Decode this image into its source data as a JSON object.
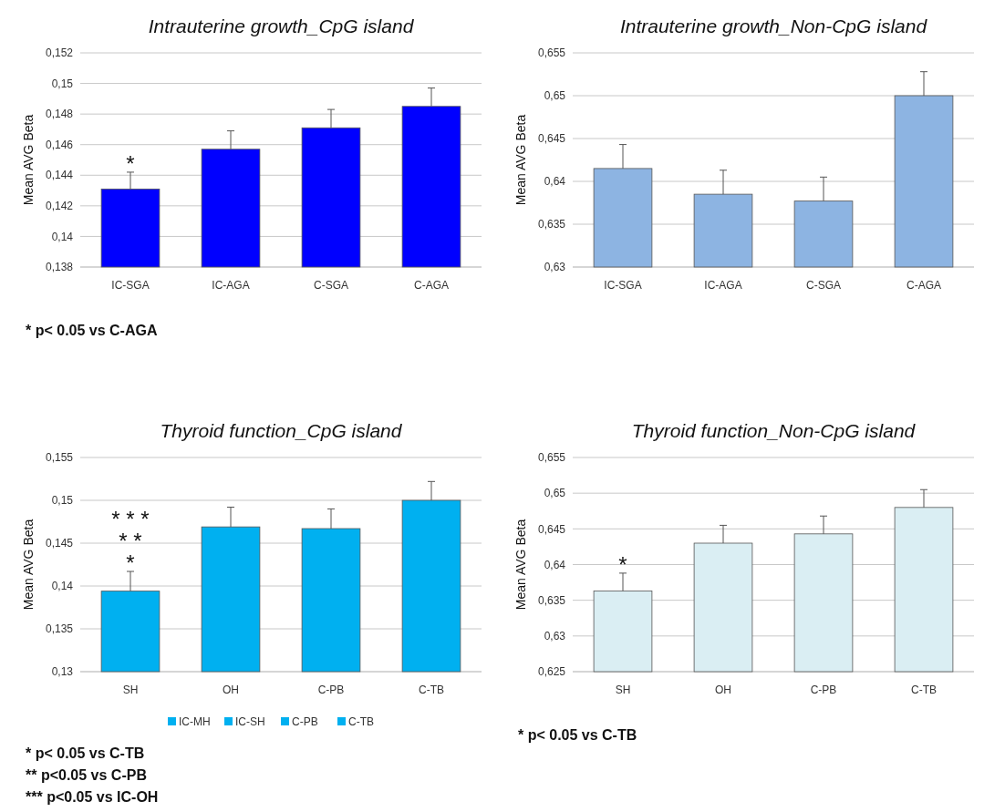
{
  "chart_data": [
    {
      "type": "bar",
      "title": "Intrauterine growth_CpG island",
      "ylabel": "Mean AVG Beta",
      "categories": [
        "IC-SGA",
        "IC-AGA",
        "C-SGA",
        "C-AGA"
      ],
      "series": [
        {
          "color": "#0000ff",
          "values": [
            0.1431,
            0.1457,
            0.1471,
            0.1485
          ],
          "errors": [
            [
              0.1431,
              0.1442
            ],
            [
              0.1457,
              0.1469
            ],
            [
              0.1471,
              0.1483
            ],
            [
              0.1485,
              0.1497
            ]
          ]
        }
      ],
      "ylim": [
        0.138,
        0.152
      ],
      "yticks": [
        {
          "value": 0.138,
          "label": "0,138"
        },
        {
          "value": 0.14,
          "label": "0,14"
        },
        {
          "value": 0.142,
          "label": "0,142"
        },
        {
          "value": 0.144,
          "label": "0,144"
        },
        {
          "value": 0.146,
          "label": "0,146"
        },
        {
          "value": 0.148,
          "label": "0,148"
        },
        {
          "value": 0.15,
          "label": "0,15"
        },
        {
          "value": 0.152,
          "label": "0,152"
        }
      ],
      "grid": "y",
      "legend": false,
      "annotations": [
        "*",
        "* p< 0.05 vs C-AGA"
      ]
    },
    {
      "type": "bar",
      "title": "Intrauterine growth_Non-CpG island",
      "ylabel": "Mean AVG Beta",
      "categories": [
        "IC-SGA",
        "IC-AGA",
        "C-SGA",
        "C-AGA"
      ],
      "series": [
        {
          "color": "#8db4e2",
          "values": [
            0.6415,
            0.6385,
            0.6377,
            0.65
          ],
          "errors": [
            [
              0.6415,
              0.6443
            ],
            [
              0.6385,
              0.6413
            ],
            [
              0.6377,
              0.6405
            ],
            [
              0.65,
              0.6528
            ]
          ]
        }
      ],
      "ylim": [
        0.63,
        0.655
      ],
      "yticks": [
        {
          "value": 0.63,
          "label": "0,63"
        },
        {
          "value": 0.635,
          "label": "0,635"
        },
        {
          "value": 0.64,
          "label": "0,64"
        },
        {
          "value": 0.645,
          "label": "0,645"
        },
        {
          "value": 0.65,
          "label": "0,65"
        },
        {
          "value": 0.655,
          "label": "0,655"
        }
      ],
      "grid": "y",
      "legend": false
    },
    {
      "type": "bar",
      "title": "Thyroid function_CpG island",
      "ylabel": "Mean AVG Beta",
      "categories": [
        "SH",
        "OH",
        "C-PB",
        "C-TB"
      ],
      "series": [
        {
          "name": "IC-MH",
          "color": "#00b0f0",
          "values": [
            0.1394,
            null,
            null,
            null
          ],
          "errors": [
            [
              0.1394,
              0.1417
            ],
            null,
            null,
            null
          ]
        },
        {
          "name": "IC-SH",
          "color": "#00b0f0",
          "values": [
            null,
            0.1469,
            null,
            null
          ],
          "errors": [
            null,
            [
              0.1469,
              0.1492
            ],
            null,
            null
          ]
        },
        {
          "name": "C-PB",
          "color": "#00b0f0",
          "values": [
            null,
            null,
            0.1467,
            null
          ],
          "errors": [
            null,
            null,
            [
              0.1467,
              0.149
            ],
            null
          ]
        },
        {
          "name": "C-TB",
          "color": "#00b0f0",
          "values": [
            null,
            null,
            null,
            0.15
          ],
          "errors": [
            null,
            null,
            null,
            [
              0.15,
              0.1522
            ]
          ]
        }
      ],
      "ylim": [
        0.13,
        0.155
      ],
      "yticks": [
        {
          "value": 0.13,
          "label": "0,13"
        },
        {
          "value": 0.135,
          "label": "0,135"
        },
        {
          "value": 0.14,
          "label": "0,14"
        },
        {
          "value": 0.145,
          "label": "0,145"
        },
        {
          "value": 0.15,
          "label": "0,15"
        },
        {
          "value": 0.155,
          "label": "0,155"
        }
      ],
      "grid": "y",
      "legend": "bottom",
      "annotations": [
        "* * *",
        "* *",
        "*",
        "* p< 0.05 vs C-TB",
        "** p<0.05 vs C-PB",
        "*** p<0.05 vs IC-OH"
      ]
    },
    {
      "type": "bar",
      "title": "Thyroid function_Non-CpG island",
      "ylabel": "Mean AVG Beta",
      "categories": [
        "SH",
        "OH",
        "C-PB",
        "C-TB"
      ],
      "series": [
        {
          "color": "#daeef3",
          "values": [
            0.6363,
            0.643,
            0.6443,
            0.648
          ],
          "errors": [
            [
              0.6363,
              0.6388
            ],
            [
              0.643,
              0.6455
            ],
            [
              0.6443,
              0.6468
            ],
            [
              0.648,
              0.6505
            ]
          ]
        }
      ],
      "ylim": [
        0.625,
        0.655
      ],
      "yticks": [
        {
          "value": 0.625,
          "label": "0,625"
        },
        {
          "value": 0.63,
          "label": "0,63"
        },
        {
          "value": 0.635,
          "label": "0,635"
        },
        {
          "value": 0.64,
          "label": "0,64"
        },
        {
          "value": 0.645,
          "label": "0,645"
        },
        {
          "value": 0.65,
          "label": "0,65"
        },
        {
          "value": 0.655,
          "label": "0,655"
        }
      ],
      "grid": "y",
      "legend": false,
      "annotations": [
        "*",
        "* p< 0.05 vs C-TB"
      ]
    }
  ]
}
